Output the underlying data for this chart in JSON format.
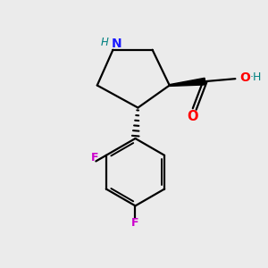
{
  "background_color": "#ebebeb",
  "bond_color": "#000000",
  "N_color": "#1a1aff",
  "NH_color": "#008080",
  "O_color": "#ff0000",
  "F_color": "#cc00cc",
  "figsize": [
    3.0,
    3.0
  ],
  "dpi": 100,
  "xlim": [
    0,
    10
  ],
  "ylim": [
    0,
    10
  ]
}
